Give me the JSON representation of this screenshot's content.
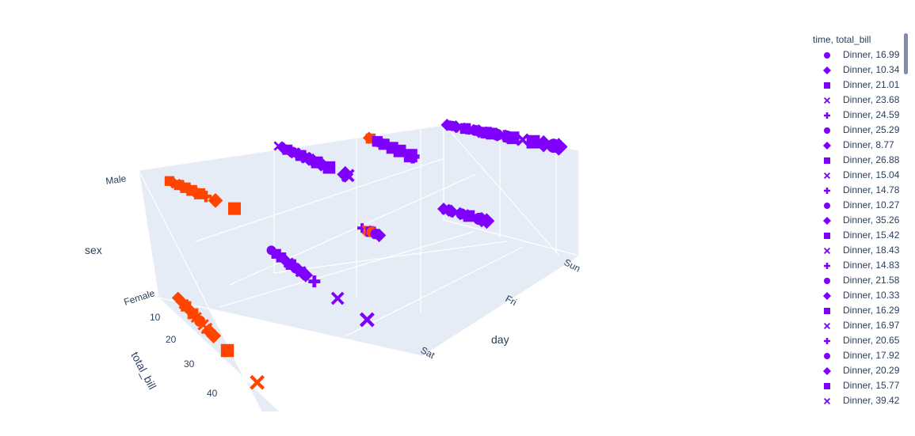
{
  "chart_data": {
    "type": "scatter3d",
    "axes": {
      "x": {
        "title": "day",
        "ticks": [
          "Sat",
          "Fri",
          "Sun"
        ]
      },
      "y": {
        "title": "total_bill",
        "ticks": [
          "10",
          "20",
          "30",
          "40"
        ]
      },
      "z": {
        "title": "sex",
        "ticks": [
          "Female",
          "Male"
        ]
      }
    },
    "colors": {
      "Dinner": "#7f00ff",
      "Lunch": "#ff4500"
    },
    "scene_background": "#e5ecf6",
    "grid": true,
    "legend": {
      "title": "time, total_bill",
      "placement": "right",
      "entries": [
        {
          "label": "Dinner, 16.99",
          "symbol": "circle",
          "color": "#7f00ff"
        },
        {
          "label": "Dinner, 10.34",
          "symbol": "diamond",
          "color": "#7f00ff"
        },
        {
          "label": "Dinner, 21.01",
          "symbol": "square",
          "color": "#7f00ff"
        },
        {
          "label": "Dinner, 23.68",
          "symbol": "x",
          "color": "#7f00ff"
        },
        {
          "label": "Dinner, 24.59",
          "symbol": "cross",
          "color": "#7f00ff"
        },
        {
          "label": "Dinner, 25.29",
          "symbol": "circle",
          "color": "#7f00ff"
        },
        {
          "label": "Dinner, 8.77",
          "symbol": "diamond",
          "color": "#7f00ff"
        },
        {
          "label": "Dinner, 26.88",
          "symbol": "square",
          "color": "#7f00ff"
        },
        {
          "label": "Dinner, 15.04",
          "symbol": "x",
          "color": "#7f00ff"
        },
        {
          "label": "Dinner, 14.78",
          "symbol": "cross",
          "color": "#7f00ff"
        },
        {
          "label": "Dinner, 10.27",
          "symbol": "circle",
          "color": "#7f00ff"
        },
        {
          "label": "Dinner, 35.26",
          "symbol": "diamond",
          "color": "#7f00ff"
        },
        {
          "label": "Dinner, 15.42",
          "symbol": "square",
          "color": "#7f00ff"
        },
        {
          "label": "Dinner, 18.43",
          "symbol": "x",
          "color": "#7f00ff"
        },
        {
          "label": "Dinner, 14.83",
          "symbol": "cross",
          "color": "#7f00ff"
        },
        {
          "label": "Dinner, 21.58",
          "symbol": "circle",
          "color": "#7f00ff"
        },
        {
          "label": "Dinner, 10.33",
          "symbol": "diamond",
          "color": "#7f00ff"
        },
        {
          "label": "Dinner, 16.29",
          "symbol": "square",
          "color": "#7f00ff"
        },
        {
          "label": "Dinner, 16.97",
          "symbol": "x",
          "color": "#7f00ff"
        },
        {
          "label": "Dinner, 20.65",
          "symbol": "cross",
          "color": "#7f00ff"
        },
        {
          "label": "Dinner, 17.92",
          "symbol": "circle",
          "color": "#7f00ff"
        },
        {
          "label": "Dinner, 20.29",
          "symbol": "diamond",
          "color": "#7f00ff"
        },
        {
          "label": "Dinner, 15.77",
          "symbol": "square",
          "color": "#7f00ff"
        },
        {
          "label": "Dinner, 39.42",
          "symbol": "x",
          "color": "#7f00ff"
        }
      ]
    },
    "points": [
      {
        "day": "Sun",
        "sex": "Male",
        "time": "Dinner",
        "total_bill": 8.77,
        "symbol": "diamond"
      },
      {
        "day": "Sun",
        "sex": "Male",
        "time": "Dinner",
        "total_bill": 9.5,
        "symbol": "circle"
      },
      {
        "day": "Sun",
        "sex": "Male",
        "time": "Dinner",
        "total_bill": 10.27,
        "symbol": "circle"
      },
      {
        "day": "Sun",
        "sex": "Male",
        "time": "Dinner",
        "total_bill": 11.2,
        "symbol": "diamond"
      },
      {
        "day": "Sun",
        "sex": "Male",
        "time": "Dinner",
        "total_bill": 12.5,
        "symbol": "x"
      },
      {
        "day": "Sun",
        "sex": "Male",
        "time": "Dinner",
        "total_bill": 13.8,
        "symbol": "square"
      },
      {
        "day": "Sun",
        "sex": "Male",
        "time": "Dinner",
        "total_bill": 14.78,
        "symbol": "cross"
      },
      {
        "day": "Sun",
        "sex": "Male",
        "time": "Dinner",
        "total_bill": 15.04,
        "symbol": "x"
      },
      {
        "day": "Sun",
        "sex": "Male",
        "time": "Dinner",
        "total_bill": 16.5,
        "symbol": "circle"
      },
      {
        "day": "Sun",
        "sex": "Male",
        "time": "Dinner",
        "total_bill": 17.5,
        "symbol": "diamond"
      },
      {
        "day": "Sun",
        "sex": "Male",
        "time": "Dinner",
        "total_bill": 18.43,
        "symbol": "x"
      },
      {
        "day": "Sun",
        "sex": "Male",
        "time": "Dinner",
        "total_bill": 19.5,
        "symbol": "square"
      },
      {
        "day": "Sun",
        "sex": "Male",
        "time": "Dinner",
        "total_bill": 21.01,
        "symbol": "square"
      },
      {
        "day": "Sun",
        "sex": "Male",
        "time": "Dinner",
        "total_bill": 22.5,
        "symbol": "circle"
      },
      {
        "day": "Sun",
        "sex": "Male",
        "time": "Dinner",
        "total_bill": 23.68,
        "symbol": "x"
      },
      {
        "day": "Sun",
        "sex": "Male",
        "time": "Dinner",
        "total_bill": 24.59,
        "symbol": "cross"
      },
      {
        "day": "Sun",
        "sex": "Male",
        "time": "Dinner",
        "total_bill": 25.29,
        "symbol": "circle"
      },
      {
        "day": "Sun",
        "sex": "Male",
        "time": "Dinner",
        "total_bill": 26.88,
        "symbol": "square"
      },
      {
        "day": "Sun",
        "sex": "Male",
        "time": "Dinner",
        "total_bill": 29.5,
        "symbol": "x"
      },
      {
        "day": "Sun",
        "sex": "Male",
        "time": "Dinner",
        "total_bill": 32.4,
        "symbol": "square"
      },
      {
        "day": "Sun",
        "sex": "Male",
        "time": "Dinner",
        "total_bill": 35.26,
        "symbol": "diamond"
      },
      {
        "day": "Sun",
        "sex": "Male",
        "time": "Dinner",
        "total_bill": 38.0,
        "symbol": "circle"
      },
      {
        "day": "Sun",
        "sex": "Male",
        "time": "Dinner",
        "total_bill": 39.42,
        "symbol": "diamond"
      },
      {
        "day": "Sun",
        "sex": "Female",
        "time": "Dinner",
        "total_bill": 10.0,
        "symbol": "diamond"
      },
      {
        "day": "Sun",
        "sex": "Female",
        "time": "Dinner",
        "total_bill": 11.0,
        "symbol": "x"
      },
      {
        "day": "Sun",
        "sex": "Female",
        "time": "Dinner",
        "total_bill": 12.0,
        "symbol": "diamond"
      },
      {
        "day": "Sun",
        "sex": "Female",
        "time": "Dinner",
        "total_bill": 13.0,
        "symbol": "diamond"
      },
      {
        "day": "Sun",
        "sex": "Female",
        "time": "Dinner",
        "total_bill": 15.0,
        "symbol": "x"
      },
      {
        "day": "Sun",
        "sex": "Female",
        "time": "Dinner",
        "total_bill": 16.99,
        "symbol": "circle"
      },
      {
        "day": "Sun",
        "sex": "Female",
        "time": "Dinner",
        "total_bill": 18.0,
        "symbol": "x"
      },
      {
        "day": "Sun",
        "sex": "Female",
        "time": "Dinner",
        "total_bill": 20.0,
        "symbol": "square"
      },
      {
        "day": "Sun",
        "sex": "Female",
        "time": "Dinner",
        "total_bill": 24.0,
        "symbol": "circle"
      },
      {
        "day": "Sun",
        "sex": "Female",
        "time": "Dinner",
        "total_bill": 25.0,
        "symbol": "diamond"
      },
      {
        "day": "Sun",
        "sex": "Female",
        "time": "Dinner",
        "total_bill": 27.0,
        "symbol": "diamond"
      },
      {
        "day": "Fri",
        "sex": "Male",
        "time": "Lunch",
        "total_bill": 8.0,
        "symbol": "diamond"
      },
      {
        "day": "Fri",
        "sex": "Male",
        "time": "Lunch",
        "total_bill": 9.0,
        "symbol": "square"
      },
      {
        "day": "Fri",
        "sex": "Male",
        "time": "Dinner",
        "total_bill": 13.0,
        "symbol": "square"
      },
      {
        "day": "Fri",
        "sex": "Male",
        "time": "Dinner",
        "total_bill": 14.0,
        "symbol": "circle"
      },
      {
        "day": "Fri",
        "sex": "Male",
        "time": "Dinner",
        "total_bill": 15.0,
        "symbol": "diamond"
      },
      {
        "day": "Fri",
        "sex": "Male",
        "time": "Dinner",
        "total_bill": 17.0,
        "symbol": "square"
      },
      {
        "day": "Fri",
        "sex": "Male",
        "time": "Dinner",
        "total_bill": 22.0,
        "symbol": "square"
      },
      {
        "day": "Fri",
        "sex": "Male",
        "time": "Dinner",
        "total_bill": 26.5,
        "symbol": "square"
      },
      {
        "day": "Fri",
        "sex": "Male",
        "time": "Dinner",
        "total_bill": 33.0,
        "symbol": "square"
      },
      {
        "day": "Fri",
        "sex": "Male",
        "time": "Dinner",
        "total_bill": 34.3,
        "symbol": "cross"
      },
      {
        "day": "Fri",
        "sex": "Female",
        "time": "Dinner",
        "total_bill": 5.75,
        "symbol": "cross"
      },
      {
        "day": "Fri",
        "sex": "Female",
        "time": "Lunch",
        "total_bill": 8.5,
        "symbol": "x"
      },
      {
        "day": "Fri",
        "sex": "Female",
        "time": "Lunch",
        "total_bill": 10.0,
        "symbol": "square"
      },
      {
        "day": "Fri",
        "sex": "Female",
        "time": "Lunch",
        "total_bill": 11.5,
        "symbol": "circle"
      },
      {
        "day": "Fri",
        "sex": "Female",
        "time": "Lunch",
        "total_bill": 12.5,
        "symbol": "diamond"
      },
      {
        "day": "Fri",
        "sex": "Female",
        "time": "Dinner",
        "total_bill": 11.0,
        "symbol": "square"
      },
      {
        "day": "Fri",
        "sex": "Female",
        "time": "Dinner",
        "total_bill": 14.0,
        "symbol": "circle"
      },
      {
        "day": "Fri",
        "sex": "Female",
        "time": "Dinner",
        "total_bill": 16.0,
        "symbol": "diamond"
      },
      {
        "day": "Sat",
        "sex": "Male",
        "time": "Dinner",
        "total_bill": 7.25,
        "symbol": "x"
      },
      {
        "day": "Sat",
        "sex": "Male",
        "time": "Dinner",
        "total_bill": 9.0,
        "symbol": "diamond"
      },
      {
        "day": "Sat",
        "sex": "Male",
        "time": "Dinner",
        "total_bill": 10.5,
        "symbol": "square"
      },
      {
        "day": "Sat",
        "sex": "Male",
        "time": "Dinner",
        "total_bill": 11.5,
        "symbol": "diamond"
      },
      {
        "day": "Sat",
        "sex": "Male",
        "time": "Dinner",
        "total_bill": 12.5,
        "symbol": "circle"
      },
      {
        "day": "Sat",
        "sex": "Male",
        "time": "Dinner",
        "total_bill": 13.5,
        "symbol": "x"
      },
      {
        "day": "Sat",
        "sex": "Male",
        "time": "Dinner",
        "total_bill": 14.5,
        "symbol": "diamond"
      },
      {
        "day": "Sat",
        "sex": "Male",
        "time": "Dinner",
        "total_bill": 15.5,
        "symbol": "square"
      },
      {
        "day": "Sat",
        "sex": "Male",
        "time": "Dinner",
        "total_bill": 16.5,
        "symbol": "diamond"
      },
      {
        "day": "Sat",
        "sex": "Male",
        "time": "Dinner",
        "total_bill": 17.5,
        "symbol": "x"
      },
      {
        "day": "Sat",
        "sex": "Male",
        "time": "Dinner",
        "total_bill": 18.5,
        "symbol": "diamond"
      },
      {
        "day": "Sat",
        "sex": "Male",
        "time": "Dinner",
        "total_bill": 20.0,
        "symbol": "diamond"
      },
      {
        "day": "Sat",
        "sex": "Male",
        "time": "Dinner",
        "total_bill": 21.5,
        "symbol": "square"
      },
      {
        "day": "Sat",
        "sex": "Male",
        "time": "Dinner",
        "total_bill": 23.0,
        "symbol": "diamond"
      },
      {
        "day": "Sat",
        "sex": "Male",
        "time": "Dinner",
        "total_bill": 26.0,
        "symbol": "square"
      },
      {
        "day": "Sat",
        "sex": "Male",
        "time": "Dinner",
        "total_bill": 32.0,
        "symbol": "diamond"
      },
      {
        "day": "Sat",
        "sex": "Male",
        "time": "Dinner",
        "total_bill": 33.0,
        "symbol": "x"
      },
      {
        "day": "Sat",
        "sex": "Female",
        "time": "Dinner",
        "total_bill": 5.0,
        "symbol": "circle"
      },
      {
        "day": "Sat",
        "sex": "Female",
        "time": "Dinner",
        "total_bill": 7.0,
        "symbol": "square"
      },
      {
        "day": "Sat",
        "sex": "Female",
        "time": "Dinner",
        "total_bill": 9.0,
        "symbol": "square"
      },
      {
        "day": "Sat",
        "sex": "Female",
        "time": "Dinner",
        "total_bill": 10.5,
        "symbol": "diamond"
      },
      {
        "day": "Sat",
        "sex": "Female",
        "time": "Dinner",
        "total_bill": 12.0,
        "symbol": "x"
      },
      {
        "day": "Sat",
        "sex": "Female",
        "time": "Dinner",
        "total_bill": 13.0,
        "symbol": "square"
      },
      {
        "day": "Sat",
        "sex": "Female",
        "time": "Dinner",
        "total_bill": 14.0,
        "symbol": "diamond"
      },
      {
        "day": "Sat",
        "sex": "Female",
        "time": "Dinner",
        "total_bill": 15.0,
        "symbol": "circle"
      },
      {
        "day": "Sat",
        "sex": "Female",
        "time": "Dinner",
        "total_bill": 16.0,
        "symbol": "diamond"
      },
      {
        "day": "Sat",
        "sex": "Female",
        "time": "Dinner",
        "total_bill": 17.0,
        "symbol": "x"
      },
      {
        "day": "Sat",
        "sex": "Female",
        "time": "Dinner",
        "total_bill": 18.0,
        "symbol": "diamond"
      },
      {
        "day": "Sat",
        "sex": "Female",
        "time": "Dinner",
        "total_bill": 19.0,
        "symbol": "diamond"
      },
      {
        "day": "Sat",
        "sex": "Female",
        "time": "Dinner",
        "total_bill": 22.5,
        "symbol": "cross"
      },
      {
        "day": "Sat",
        "sex": "Female",
        "time": "Dinner",
        "total_bill": 32.0,
        "symbol": "x"
      },
      {
        "day": "Sat",
        "sex": "Female",
        "time": "Dinner",
        "total_bill": 44.0,
        "symbol": "x"
      },
      {
        "day": "Thur",
        "sex": "Male",
        "time": "Lunch",
        "total_bill": 7.5,
        "symbol": "square"
      },
      {
        "day": "Thur",
        "sex": "Male",
        "time": "Lunch",
        "total_bill": 8.5,
        "symbol": "diamond"
      },
      {
        "day": "Thur",
        "sex": "Male",
        "time": "Lunch",
        "total_bill": 9.5,
        "symbol": "x"
      },
      {
        "day": "Thur",
        "sex": "Male",
        "time": "Lunch",
        "total_bill": 10.5,
        "symbol": "square"
      },
      {
        "day": "Thur",
        "sex": "Male",
        "time": "Lunch",
        "total_bill": 11.5,
        "symbol": "diamond"
      },
      {
        "day": "Thur",
        "sex": "Male",
        "time": "Lunch",
        "total_bill": 12.5,
        "symbol": "square"
      },
      {
        "day": "Thur",
        "sex": "Male",
        "time": "Lunch",
        "total_bill": 13.5,
        "symbol": "diamond"
      },
      {
        "day": "Thur",
        "sex": "Male",
        "time": "Lunch",
        "total_bill": 14.5,
        "symbol": "square"
      },
      {
        "day": "Thur",
        "sex": "Male",
        "time": "Lunch",
        "total_bill": 15.5,
        "symbol": "diamond"
      },
      {
        "day": "Thur",
        "sex": "Male",
        "time": "Lunch",
        "total_bill": 17.0,
        "symbol": "square"
      },
      {
        "day": "Thur",
        "sex": "Male",
        "time": "Lunch",
        "total_bill": 19.0,
        "symbol": "cross"
      },
      {
        "day": "Thur",
        "sex": "Male",
        "time": "Lunch",
        "total_bill": 22.0,
        "symbol": "diamond"
      },
      {
        "day": "Thur",
        "sex": "Male",
        "time": "Lunch",
        "total_bill": 28.0,
        "symbol": "square"
      },
      {
        "day": "Thur",
        "sex": "Female",
        "time": "Lunch",
        "total_bill": 8.5,
        "symbol": "diamond"
      },
      {
        "day": "Thur",
        "sex": "Female",
        "time": "Lunch",
        "total_bill": 10.0,
        "symbol": "diamond"
      },
      {
        "day": "Thur",
        "sex": "Female",
        "time": "Lunch",
        "total_bill": 11.0,
        "symbol": "x"
      },
      {
        "day": "Thur",
        "sex": "Female",
        "time": "Lunch",
        "total_bill": 12.0,
        "symbol": "square"
      },
      {
        "day": "Thur",
        "sex": "Female",
        "time": "Lunch",
        "total_bill": 13.0,
        "symbol": "diamond"
      },
      {
        "day": "Thur",
        "sex": "Female",
        "time": "Lunch",
        "total_bill": 14.0,
        "symbol": "cross"
      },
      {
        "day": "Thur",
        "sex": "Female",
        "time": "Lunch",
        "total_bill": 15.0,
        "symbol": "square"
      },
      {
        "day": "Thur",
        "sex": "Female",
        "time": "Lunch",
        "total_bill": 16.5,
        "symbol": "x"
      },
      {
        "day": "Thur",
        "sex": "Female",
        "time": "Lunch",
        "total_bill": 18.0,
        "symbol": "circle"
      },
      {
        "day": "Thur",
        "sex": "Female",
        "time": "Lunch",
        "total_bill": 19.5,
        "symbol": "x"
      },
      {
        "day": "Thur",
        "sex": "Female",
        "time": "Lunch",
        "total_bill": 21.0,
        "symbol": "x"
      },
      {
        "day": "Thur",
        "sex": "Female",
        "time": "Lunch",
        "total_bill": 22.0,
        "symbol": "diamond"
      },
      {
        "day": "Thur",
        "sex": "Female",
        "time": "Lunch",
        "total_bill": 24.0,
        "symbol": "diamond"
      },
      {
        "day": "Thur",
        "sex": "Female",
        "time": "Lunch",
        "total_bill": 30.0,
        "symbol": "square"
      },
      {
        "day": "Thur",
        "sex": "Female",
        "time": "Lunch",
        "total_bill": 43.0,
        "symbol": "x"
      }
    ]
  }
}
